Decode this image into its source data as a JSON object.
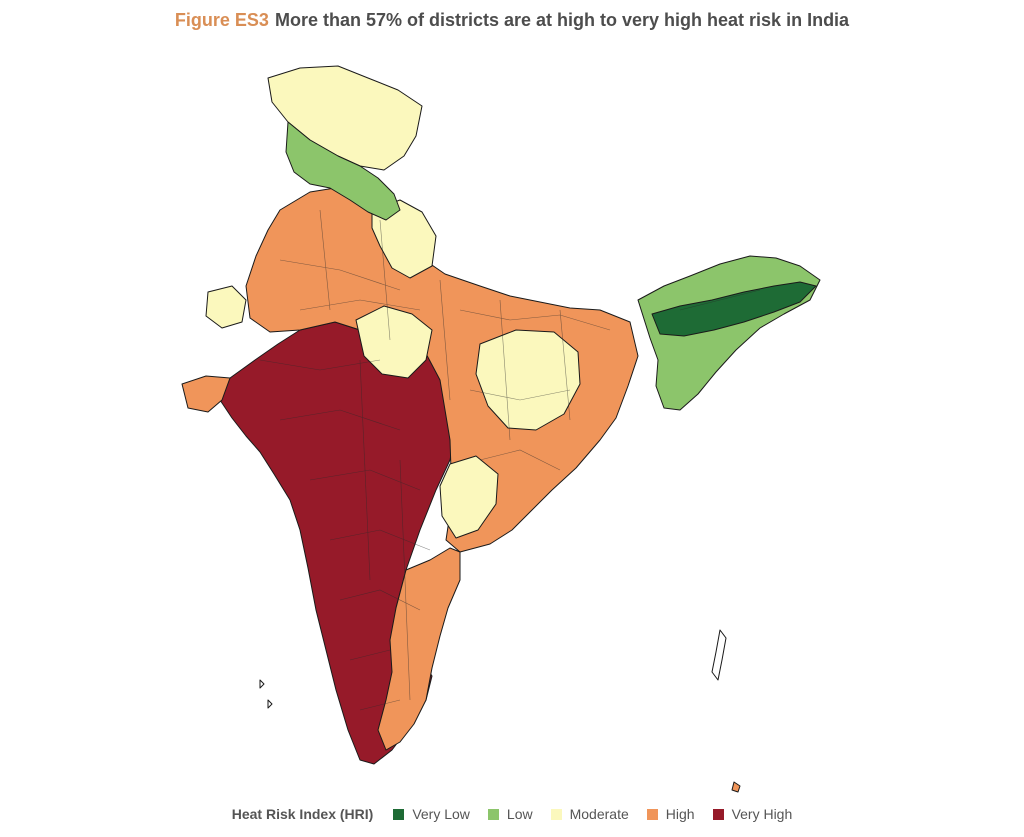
{
  "header": {
    "figure_label": "Figure ES3",
    "title": "More than 57% of districts are at high to very high heat risk in India"
  },
  "legend": {
    "title": "Heat Risk Index (HRI)",
    "items": [
      {
        "label": "Very Low",
        "color": "#1e6b35"
      },
      {
        "label": "Low",
        "color": "#8cc56b"
      },
      {
        "label": "Moderate",
        "color": "#fbf8bd"
      },
      {
        "label": "High",
        "color": "#f0955a"
      },
      {
        "label": "Very High",
        "color": "#961a29"
      }
    ]
  }
}
